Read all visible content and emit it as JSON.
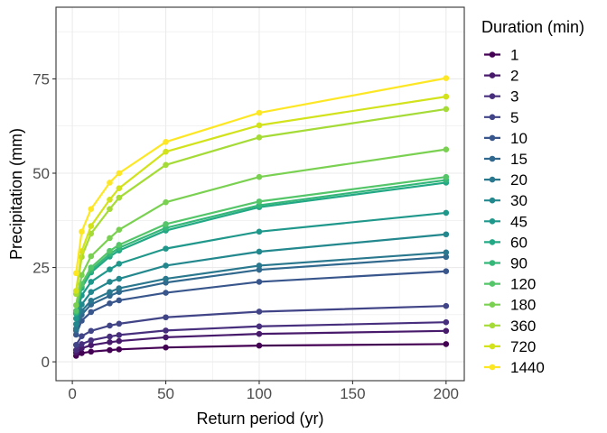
{
  "chart_data": {
    "type": "line",
    "xlabel": "Return period (yr)",
    "ylabel": "Precipitation (mm)",
    "xlim": [
      -8.75,
      209.75
    ],
    "ylim": [
      -5,
      94
    ],
    "xticks": [
      0,
      50,
      100,
      150,
      200
    ],
    "yticks": [
      0,
      25,
      50,
      75
    ],
    "grid": true,
    "legend_title": "Duration (min)",
    "legend_position": "right",
    "x": [
      2,
      5,
      10,
      20,
      25,
      50,
      100,
      200
    ],
    "series": [
      {
        "name": "1",
        "color": "#440154",
        "values": [
          1.6,
          2.3,
          2.7,
          3.1,
          3.3,
          3.8,
          4.3,
          4.7
        ]
      },
      {
        "name": "2",
        "color": "#481A6C",
        "values": [
          2.4,
          3.6,
          4.4,
          5.2,
          5.5,
          6.5,
          7.4,
          8.2
        ]
      },
      {
        "name": "3",
        "color": "#472F7D",
        "values": [
          3.1,
          4.7,
          5.7,
          6.7,
          7.1,
          8.3,
          9.4,
          10.5
        ]
      },
      {
        "name": "5",
        "color": "#414487",
        "values": [
          4.5,
          6.8,
          8.2,
          9.6,
          10.1,
          11.8,
          13.3,
          14.8
        ]
      },
      {
        "name": "10",
        "color": "#39568C",
        "values": [
          7.2,
          10.9,
          13.2,
          15.5,
          16.3,
          18.3,
          21.2,
          24.0
        ]
      },
      {
        "name": "15",
        "color": "#31688E",
        "values": [
          8.3,
          12.5,
          15.2,
          17.5,
          18.5,
          21.0,
          24.4,
          27.8
        ]
      },
      {
        "name": "20",
        "color": "#2A788E",
        "values": [
          8.8,
          13.5,
          16.2,
          18.5,
          19.5,
          22.0,
          25.5,
          29.0
        ]
      },
      {
        "name": "30",
        "color": "#23888E",
        "values": [
          10.0,
          15.2,
          18.5,
          21.2,
          22.0,
          25.5,
          29.2,
          33.8
        ]
      },
      {
        "name": "45",
        "color": "#1F988B",
        "values": [
          11.5,
          17.6,
          21.2,
          24.5,
          26.0,
          30.0,
          34.5,
          39.5
        ]
      },
      {
        "name": "60",
        "color": "#22A884",
        "values": [
          12.8,
          19.6,
          23.7,
          27.9,
          29.5,
          34.8,
          41.0,
          47.5
        ]
      },
      {
        "name": "90",
        "color": "#35B779",
        "values": [
          13.1,
          20.0,
          24.3,
          28.6,
          30.2,
          35.5,
          41.5,
          48.2
        ]
      },
      {
        "name": "120",
        "color": "#54C568",
        "values": [
          13.5,
          20.6,
          25.0,
          29.4,
          31.0,
          36.5,
          42.5,
          49.0
        ]
      },
      {
        "name": "180",
        "color": "#7AD151",
        "values": [
          15.0,
          23.0,
          28.0,
          32.8,
          35.0,
          42.3,
          49.0,
          56.3
        ]
      },
      {
        "name": "360",
        "color": "#A5DB36",
        "values": [
          18.0,
          27.8,
          34.0,
          40.5,
          43.5,
          52.2,
          59.5,
          67.0
        ]
      },
      {
        "name": "720",
        "color": "#D2E21B",
        "values": [
          18.8,
          29.3,
          36.0,
          43.0,
          46.0,
          55.7,
          62.7,
          70.3
        ]
      },
      {
        "name": "1440",
        "color": "#FDE725",
        "values": [
          23.5,
          34.5,
          40.5,
          47.5,
          50.0,
          58.3,
          66.0,
          75.2
        ]
      }
    ]
  }
}
